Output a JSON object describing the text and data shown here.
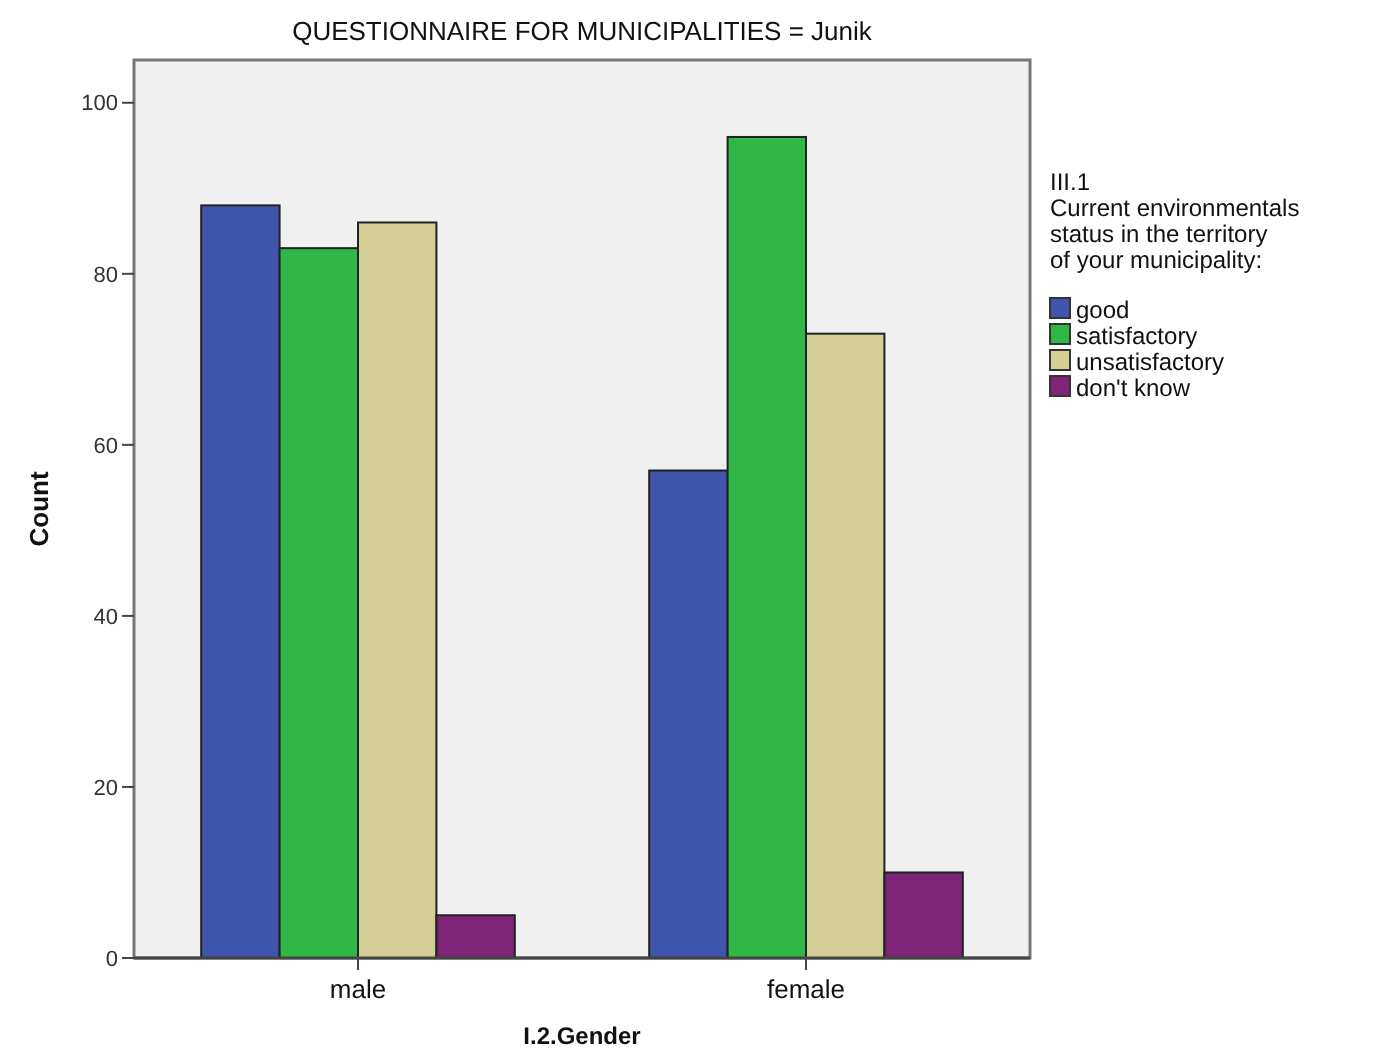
{
  "chart_data": {
    "type": "bar",
    "title": "QUESTIONNAIRE FOR MUNICIPALITIES = Junik",
    "xlabel": "I.2.Gender",
    "ylabel": "Count",
    "legend_title": "III.1\nCurrent environmentals\nstatus in the territory\nof your municipality:",
    "categories": [
      "male",
      "female"
    ],
    "series": [
      {
        "name": "good",
        "color": "#3f55ab",
        "values": [
          88,
          57
        ]
      },
      {
        "name": "satisfactory",
        "color": "#2fb748",
        "values": [
          83,
          96
        ]
      },
      {
        "name": "unsatisfactory",
        "color": "#d4cf97",
        "values": [
          86,
          73
        ]
      },
      {
        "name": "don't know",
        "color": "#7f2479",
        "values": [
          5,
          10
        ]
      }
    ],
    "ylim": [
      0,
      105
    ],
    "yticks": [
      0,
      20,
      40,
      60,
      80,
      100
    ],
    "grid": false,
    "legend": "right"
  }
}
